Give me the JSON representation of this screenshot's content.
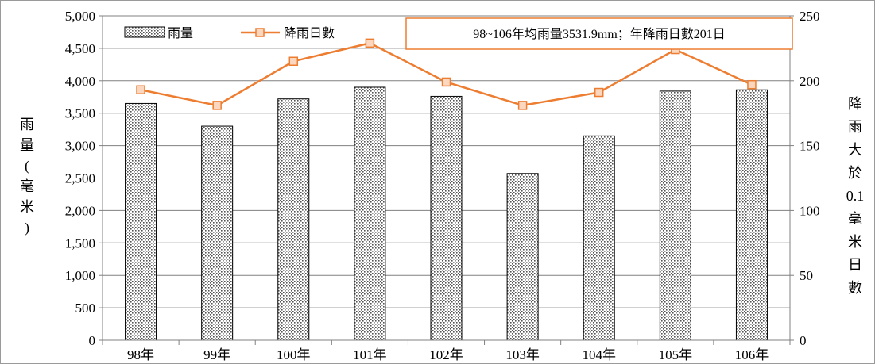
{
  "chart_data": {
    "type": "bar",
    "categories": [
      "98年",
      "99年",
      "100年",
      "101年",
      "102年",
      "103年",
      "104年",
      "105年",
      "106年"
    ],
    "series": [
      {
        "name": "雨量",
        "type": "bar",
        "axis": "left",
        "values": [
          3650,
          3300,
          3720,
          3900,
          3760,
          2570,
          3150,
          3840,
          3860
        ]
      },
      {
        "name": "降雨日數",
        "type": "line",
        "axis": "right",
        "values": [
          193,
          181,
          215,
          229,
          199,
          181,
          191,
          224,
          197
        ]
      }
    ],
    "left_axis": {
      "label": "雨量(毫米)",
      "range": [
        0,
        5000
      ],
      "ticks": [
        "0",
        "500",
        "1,000",
        "1,500",
        "2,000",
        "2,500",
        "3,000",
        "3,500",
        "4,000",
        "4,500",
        "5,000"
      ]
    },
    "right_axis": {
      "label": "降雨大於0.1毫米日數",
      "range": [
        0,
        250
      ],
      "ticks": [
        "0",
        "50",
        "100",
        "150",
        "200",
        "250"
      ]
    },
    "annotation": "98~106年均雨量3531.9mm；年降雨日數201日",
    "legend_position": "top-left",
    "grid": "horizontal",
    "colors": {
      "bar_fill": "#ffffff",
      "bar_dots": "#555555",
      "bar_stroke": "#000000",
      "line": "#ED7D31",
      "marker_fill": "#FAD7BE",
      "grid": "#808080",
      "annotation_border": "#ED7D31"
    }
  }
}
